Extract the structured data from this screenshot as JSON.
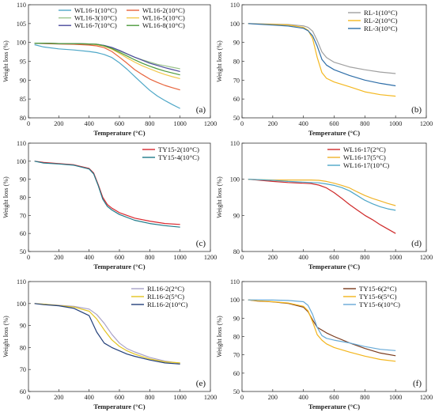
{
  "figure": {
    "xlabel": "Temperature (°C)",
    "ylabel": "Weight loss (%)"
  },
  "chart_data": [
    {
      "type": "line",
      "panel_label": "(a)",
      "xlabel": "Temperature (°C)",
      "ylabel": "Weight loss (%)",
      "xlim": [
        0,
        1200
      ],
      "ylim": [
        80,
        110
      ],
      "xticks": [
        0,
        200,
        400,
        600,
        800,
        1000,
        1200
      ],
      "yticks": [
        80,
        85,
        90,
        95,
        100,
        105,
        110
      ],
      "legend_position": "top",
      "series": [
        {
          "name": "WL16-1(10°C)",
          "color": "#4ea7c7",
          "x": [
            40,
            100,
            200,
            300,
            400,
            450,
            500,
            550,
            600,
            650,
            700,
            750,
            800,
            850,
            900,
            950,
            1000
          ],
          "y": [
            99.4,
            98.8,
            98.3,
            98.0,
            97.6,
            97.3,
            96.8,
            96.0,
            94.6,
            92.9,
            91.0,
            89.1,
            87.3,
            85.8,
            84.6,
            83.5,
            82.5
          ]
        },
        {
          "name": "WL16-2(10°C)",
          "color": "#e8643c",
          "x": [
            40,
            100,
            200,
            300,
            400,
            450,
            500,
            550,
            600,
            650,
            700,
            750,
            800,
            850,
            900,
            950,
            1000
          ],
          "y": [
            99.8,
            99.7,
            99.6,
            99.5,
            99.3,
            99.1,
            98.6,
            97.6,
            96.1,
            94.5,
            92.8,
            91.5,
            90.3,
            89.4,
            88.6,
            88.0,
            87.4
          ]
        },
        {
          "name": "WL16-3(10°C)",
          "color": "#9bc48c",
          "x": [
            40,
            100,
            200,
            300,
            400,
            450,
            500,
            550,
            600,
            650,
            700,
            750,
            800,
            850,
            900,
            950,
            1000
          ],
          "y": [
            99.8,
            99.8,
            99.7,
            99.7,
            99.6,
            99.5,
            99.2,
            98.6,
            97.7,
            96.9,
            96.1,
            95.4,
            94.8,
            94.2,
            93.8,
            93.4,
            93.0
          ]
        },
        {
          "name": "WL16-5(10°C)",
          "color": "#f2c84b",
          "x": [
            40,
            100,
            200,
            300,
            400,
            450,
            500,
            550,
            600,
            650,
            700,
            750,
            800,
            850,
            900,
            950,
            1000
          ],
          "y": [
            99.8,
            99.8,
            99.7,
            99.7,
            99.6,
            99.4,
            99.0,
            98.2,
            97.1,
            95.9,
            94.8,
            93.8,
            93.0,
            92.2,
            91.5,
            90.9,
            90.4
          ]
        },
        {
          "name": "WL16-7(10°C)",
          "color": "#4a4a9c",
          "x": [
            40,
            100,
            200,
            300,
            400,
            450,
            500,
            550,
            600,
            650,
            700,
            750,
            800,
            850,
            900,
            950,
            1000
          ],
          "y": [
            99.8,
            99.8,
            99.7,
            99.7,
            99.6,
            99.5,
            99.2,
            98.7,
            97.9,
            97.0,
            96.1,
            95.3,
            94.5,
            93.9,
            93.3,
            92.8,
            92.3
          ]
        },
        {
          "name": "WL16-8(10°C)",
          "color": "#4c9a3c",
          "x": [
            40,
            100,
            200,
            300,
            400,
            450,
            500,
            550,
            600,
            650,
            700,
            750,
            800,
            850,
            900,
            950,
            1000
          ],
          "y": [
            99.8,
            99.8,
            99.7,
            99.7,
            99.6,
            99.5,
            99.1,
            98.4,
            97.4,
            96.4,
            95.4,
            94.5,
            93.7,
            93.0,
            92.4,
            91.9,
            91.4
          ]
        }
      ]
    },
    {
      "type": "line",
      "panel_label": "(b)",
      "xlabel": "Temperature (°C)",
      "ylabel": "Weight loss (%)",
      "xlim": [
        0,
        1200
      ],
      "ylim": [
        50,
        110
      ],
      "xticks": [
        0,
        200,
        400,
        600,
        800,
        1000,
        1200
      ],
      "yticks": [
        50,
        60,
        70,
        80,
        90,
        100,
        110
      ],
      "legend_position": "top-right",
      "series": [
        {
          "name": "RL-1(10°C)",
          "color": "#a0a0a0",
          "x": [
            40,
            100,
            200,
            300,
            400,
            430,
            460,
            490,
            520,
            550,
            600,
            700,
            800,
            900,
            1000
          ],
          "y": [
            100,
            99.9,
            99.7,
            99.5,
            98.8,
            98.0,
            96.0,
            91.0,
            85.0,
            82.0,
            79.5,
            77.0,
            75.5,
            74.3,
            73.5
          ]
        },
        {
          "name": "RL-2(10°C)",
          "color": "#f4b820",
          "x": [
            40,
            100,
            200,
            300,
            400,
            430,
            460,
            490,
            520,
            550,
            600,
            700,
            800,
            900,
            1000
          ],
          "y": [
            100,
            99.8,
            99.6,
            99.3,
            98.0,
            96.5,
            92.0,
            82.0,
            74.0,
            71.0,
            69.0,
            66.5,
            63.8,
            62.3,
            61.5
          ]
        },
        {
          "name": "RL-3(10°C)",
          "color": "#2e6ea8",
          "x": [
            40,
            100,
            200,
            300,
            400,
            430,
            460,
            490,
            520,
            550,
            600,
            700,
            800,
            900,
            1000
          ],
          "y": [
            100,
            99.7,
            99.2,
            98.7,
            97.5,
            96.2,
            93.5,
            88.0,
            81.0,
            78.0,
            75.5,
            72.5,
            70.0,
            68.3,
            67.0
          ]
        }
      ]
    },
    {
      "type": "line",
      "panel_label": "(c)",
      "xlabel": "Temperature (°C)",
      "ylabel": "Weight loss (%)",
      "xlim": [
        0,
        1200
      ],
      "ylim": [
        50,
        110
      ],
      "xticks": [
        0,
        200,
        400,
        600,
        800,
        1000,
        1200
      ],
      "yticks": [
        50,
        60,
        70,
        80,
        90,
        100,
        110
      ],
      "legend_position": "top-right",
      "series": [
        {
          "name": "TY15-2(10°C)",
          "color": "#d9272e",
          "x": [
            40,
            100,
            200,
            300,
            400,
            430,
            460,
            490,
            520,
            550,
            600,
            700,
            800,
            900,
            1000
          ],
          "y": [
            100,
            99.3,
            98.7,
            98.0,
            96.0,
            93.5,
            87.0,
            80.0,
            76.0,
            74.0,
            71.5,
            68.5,
            66.8,
            65.5,
            65.0
          ]
        },
        {
          "name": "TY15-4(10°C)",
          "color": "#1e7a8a",
          "x": [
            40,
            100,
            200,
            300,
            400,
            430,
            460,
            490,
            520,
            550,
            600,
            700,
            800,
            900,
            1000
          ],
          "y": [
            100,
            99.0,
            98.5,
            97.8,
            95.7,
            93.0,
            86.5,
            79.0,
            75.0,
            73.0,
            70.5,
            67.3,
            65.5,
            64.3,
            63.5
          ]
        }
      ]
    },
    {
      "type": "line",
      "panel_label": "(d)",
      "xlabel": "Temperature (°C)",
      "ylabel": "Weight loss (%)",
      "xlim": [
        0,
        1200
      ],
      "ylim": [
        80,
        110
      ],
      "xticks": [
        0,
        200,
        400,
        600,
        800,
        1000,
        1200
      ],
      "yticks": [
        80,
        90,
        100,
        110
      ],
      "legend_position": "top-right",
      "series": [
        {
          "name": "WL16-17(2°C)",
          "color": "#cf2a2a",
          "x": [
            40,
            100,
            200,
            300,
            400,
            450,
            500,
            550,
            600,
            650,
            700,
            750,
            800,
            850,
            900,
            950,
            1000
          ],
          "y": [
            100,
            99.8,
            99.4,
            99.1,
            98.9,
            98.8,
            98.4,
            97.6,
            96.3,
            94.7,
            93.0,
            91.5,
            90.0,
            88.8,
            87.4,
            86.2,
            85.0
          ]
        },
        {
          "name": "WL16-17(5°C)",
          "color": "#f0b429",
          "x": [
            40,
            100,
            200,
            300,
            400,
            450,
            500,
            550,
            600,
            650,
            700,
            750,
            800,
            850,
            900,
            950,
            1000
          ],
          "y": [
            100,
            99.9,
            99.8,
            99.8,
            99.8,
            99.8,
            99.7,
            99.4,
            98.9,
            98.3,
            97.6,
            96.5,
            95.5,
            94.7,
            94.0,
            93.3,
            92.7
          ]
        },
        {
          "name": "WL16-17(10°C)",
          "color": "#4da6c8",
          "x": [
            40,
            100,
            200,
            300,
            400,
            450,
            500,
            550,
            600,
            650,
            700,
            750,
            800,
            850,
            900,
            950,
            1000
          ],
          "y": [
            100,
            99.9,
            99.7,
            99.4,
            99.2,
            99.1,
            99.0,
            98.7,
            98.3,
            97.7,
            96.8,
            95.5,
            94.2,
            93.2,
            92.4,
            91.8,
            91.4
          ]
        }
      ]
    },
    {
      "type": "line",
      "panel_label": "(e)",
      "xlabel": "Temperature (°C)",
      "ylabel": "Weight loss (%)",
      "xlim": [
        0,
        1200
      ],
      "ylim": [
        60,
        110
      ],
      "xticks": [
        0,
        200,
        400,
        600,
        800,
        1000,
        1200
      ],
      "yticks": [
        60,
        70,
        80,
        90,
        100,
        110
      ],
      "legend_position": "top-right",
      "series": [
        {
          "name": "RL16-2(2°C)",
          "color": "#a9a2c8",
          "x": [
            40,
            100,
            200,
            300,
            400,
            450,
            500,
            550,
            600,
            650,
            700,
            800,
            900,
            1000
          ],
          "y": [
            100,
            99.7,
            99.2,
            98.7,
            97.5,
            95.0,
            91.0,
            86.0,
            82.0,
            79.5,
            78.0,
            75.5,
            73.8,
            72.8
          ]
        },
        {
          "name": "RL16-2(5°C)",
          "color": "#e3c420",
          "x": [
            40,
            100,
            200,
            300,
            400,
            450,
            500,
            550,
            600,
            650,
            700,
            800,
            900,
            1000
          ],
          "y": [
            100,
            99.7,
            99.1,
            98.4,
            96.5,
            93.0,
            88.0,
            83.5,
            80.5,
            78.5,
            77.0,
            74.8,
            73.5,
            73.0
          ]
        },
        {
          "name": "RL16-2(10°C)",
          "color": "#23407a",
          "x": [
            40,
            100,
            200,
            300,
            400,
            450,
            500,
            550,
            600,
            650,
            700,
            800,
            900,
            1000
          ],
          "y": [
            100,
            99.5,
            99.0,
            97.8,
            94.5,
            87.0,
            82.0,
            80.0,
            78.5,
            77.0,
            76.0,
            74.3,
            73.0,
            72.5
          ]
        }
      ]
    },
    {
      "type": "line",
      "panel_label": "(f)",
      "xlabel": "Temperature (°C)",
      "ylabel": "Weight loss (%)",
      "xlim": [
        0,
        1200
      ],
      "ylim": [
        50,
        110
      ],
      "xticks": [
        0,
        200,
        400,
        600,
        800,
        1000,
        1200
      ],
      "yticks": [
        50,
        60,
        70,
        80,
        90,
        100,
        110
      ],
      "legend_position": "top-right",
      "series": [
        {
          "name": "TY15-6(2°C)",
          "color": "#7a3b1d",
          "x": [
            40,
            100,
            200,
            300,
            400,
            430,
            460,
            490,
            520,
            550,
            600,
            700,
            800,
            900,
            1000
          ],
          "y": [
            100,
            99.4,
            98.9,
            98.1,
            96.0,
            93.5,
            89.0,
            85.0,
            83.5,
            82.0,
            80.0,
            76.5,
            73.5,
            71.0,
            69.5
          ]
        },
        {
          "name": "TY15-6(5°C)",
          "color": "#f3b51b",
          "x": [
            40,
            100,
            200,
            300,
            400,
            430,
            460,
            490,
            520,
            550,
            600,
            700,
            800,
            900,
            1000
          ],
          "y": [
            100,
            99.5,
            99.0,
            98.3,
            96.5,
            94.0,
            88.0,
            81.0,
            78.0,
            76.0,
            74.0,
            71.5,
            69.3,
            67.5,
            66.5
          ]
        },
        {
          "name": "TY15-6(10°C)",
          "color": "#66a9d7",
          "x": [
            40,
            100,
            200,
            300,
            400,
            430,
            460,
            490,
            520,
            550,
            600,
            700,
            800,
            900,
            1000
          ],
          "y": [
            100,
            100.0,
            99.9,
            99.7,
            99.0,
            97.0,
            92.0,
            85.0,
            80.5,
            79.0,
            78.0,
            76.5,
            74.5,
            73.0,
            72.3
          ]
        }
      ]
    }
  ]
}
